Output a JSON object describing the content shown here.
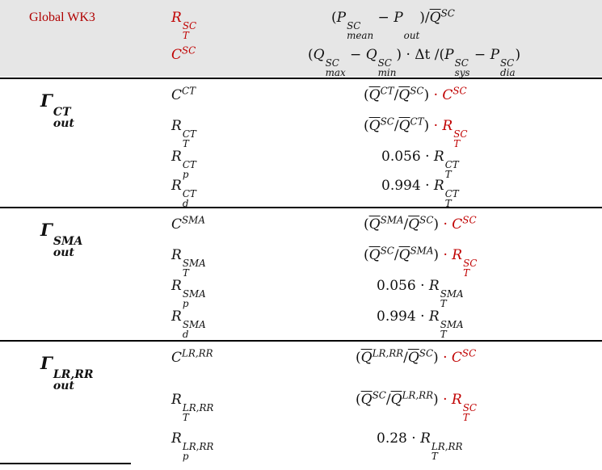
{
  "header": {
    "title": "Global WK3",
    "param1_symbol": "R",
    "param1_sup": "SC",
    "param1_sub": "T",
    "param2_symbol": "C",
    "param2_sup": "SC",
    "formula1": {
      "P": "P",
      "mean": "mean",
      "SC": "SC",
      "minus": " − ",
      "out": "out",
      "Q": "Q"
    },
    "formula2": {
      "Q": "Q",
      "max": "max",
      "min": "min",
      "SC": "SC",
      "dt": " · Δt /(",
      "P": "P",
      "sys": "sys",
      "dia": "dia"
    }
  },
  "groups": [
    {
      "gamma": "Γ",
      "gamma_sup": "CT",
      "gamma_sub": "out",
      "rows": [
        {
          "sym": "C",
          "sup": "CT",
          "sub": "",
          "formula_type": "ratio",
          "num_sup": "CT",
          "den_sup": "SC",
          "tail_sym": "C",
          "tail_sup": "SC",
          "tail_sub": ""
        },
        {
          "sym": "R",
          "sup": "CT",
          "sub": "T",
          "formula_type": "ratio",
          "num_sup": "SC",
          "den_sup": "CT",
          "tail_sym": "R",
          "tail_sup": "SC",
          "tail_sub": "T"
        },
        {
          "sym": "R",
          "sup": "CT",
          "sub": "p",
          "formula_type": "scale",
          "coef": "0.056",
          "tail_sym": "R",
          "tail_sup": "CT",
          "tail_sub": "T"
        },
        {
          "sym": "R",
          "sup": "CT",
          "sub": "d",
          "formula_type": "scale",
          "coef": "0.994",
          "tail_sym": "R",
          "tail_sup": "CT",
          "tail_sub": "T"
        }
      ]
    },
    {
      "gamma": "Γ",
      "gamma_sup": "SMA",
      "gamma_sub": "out",
      "rows": [
        {
          "sym": "C",
          "sup": "SMA",
          "sub": "",
          "formula_type": "ratio",
          "num_sup": "SMA",
          "den_sup": "SC",
          "tail_sym": "C",
          "tail_sup": "SC",
          "tail_sub": ""
        },
        {
          "sym": "R",
          "sup": "SMA",
          "sub": "T",
          "formula_type": "ratio",
          "num_sup": "SC",
          "den_sup": "SMA",
          "tail_sym": "R",
          "tail_sup": "SC",
          "tail_sub": "T"
        },
        {
          "sym": "R",
          "sup": "SMA",
          "sub": "p",
          "formula_type": "scale",
          "coef": "0.056",
          "tail_sym": "R",
          "tail_sup": "SMA",
          "tail_sub": "T"
        },
        {
          "sym": "R",
          "sup": "SMA",
          "sub": "d",
          "formula_type": "scale",
          "coef": "0.994",
          "tail_sym": "R",
          "tail_sup": "SMA",
          "tail_sub": "T"
        }
      ]
    },
    {
      "gamma": "Γ",
      "gamma_sup": "LR,RR",
      "gamma_sub": "out",
      "rows": [
        {
          "sym": "C",
          "sup": "LR,RR",
          "sub": "",
          "formula_type": "ratio",
          "num_sup": "LR,RR",
          "den_sup": "SC",
          "tail_sym": "C",
          "tail_sup": "SC",
          "tail_sub": ""
        },
        {
          "sym": "R",
          "sup": "LR,RR",
          "sub": "T",
          "formula_type": "ratio",
          "num_sup": "SC",
          "den_sup": "LR,RR",
          "tail_sym": "R",
          "tail_sup": "SC",
          "tail_sub": "T"
        },
        {
          "sym": "R",
          "sup": "LR,RR",
          "sub": "p",
          "formula_type": "scale",
          "coef": "0.28",
          "tail_sym": "R",
          "tail_sup": "LR,RR",
          "tail_sub": "T"
        }
      ]
    }
  ],
  "symbols": {
    "open": "(",
    "close": ")",
    "slash": "/",
    "dot": " · ",
    "Q": "Q"
  },
  "colors": {
    "accent_red": "#c00000",
    "header_bg": "#e6e6e6"
  }
}
